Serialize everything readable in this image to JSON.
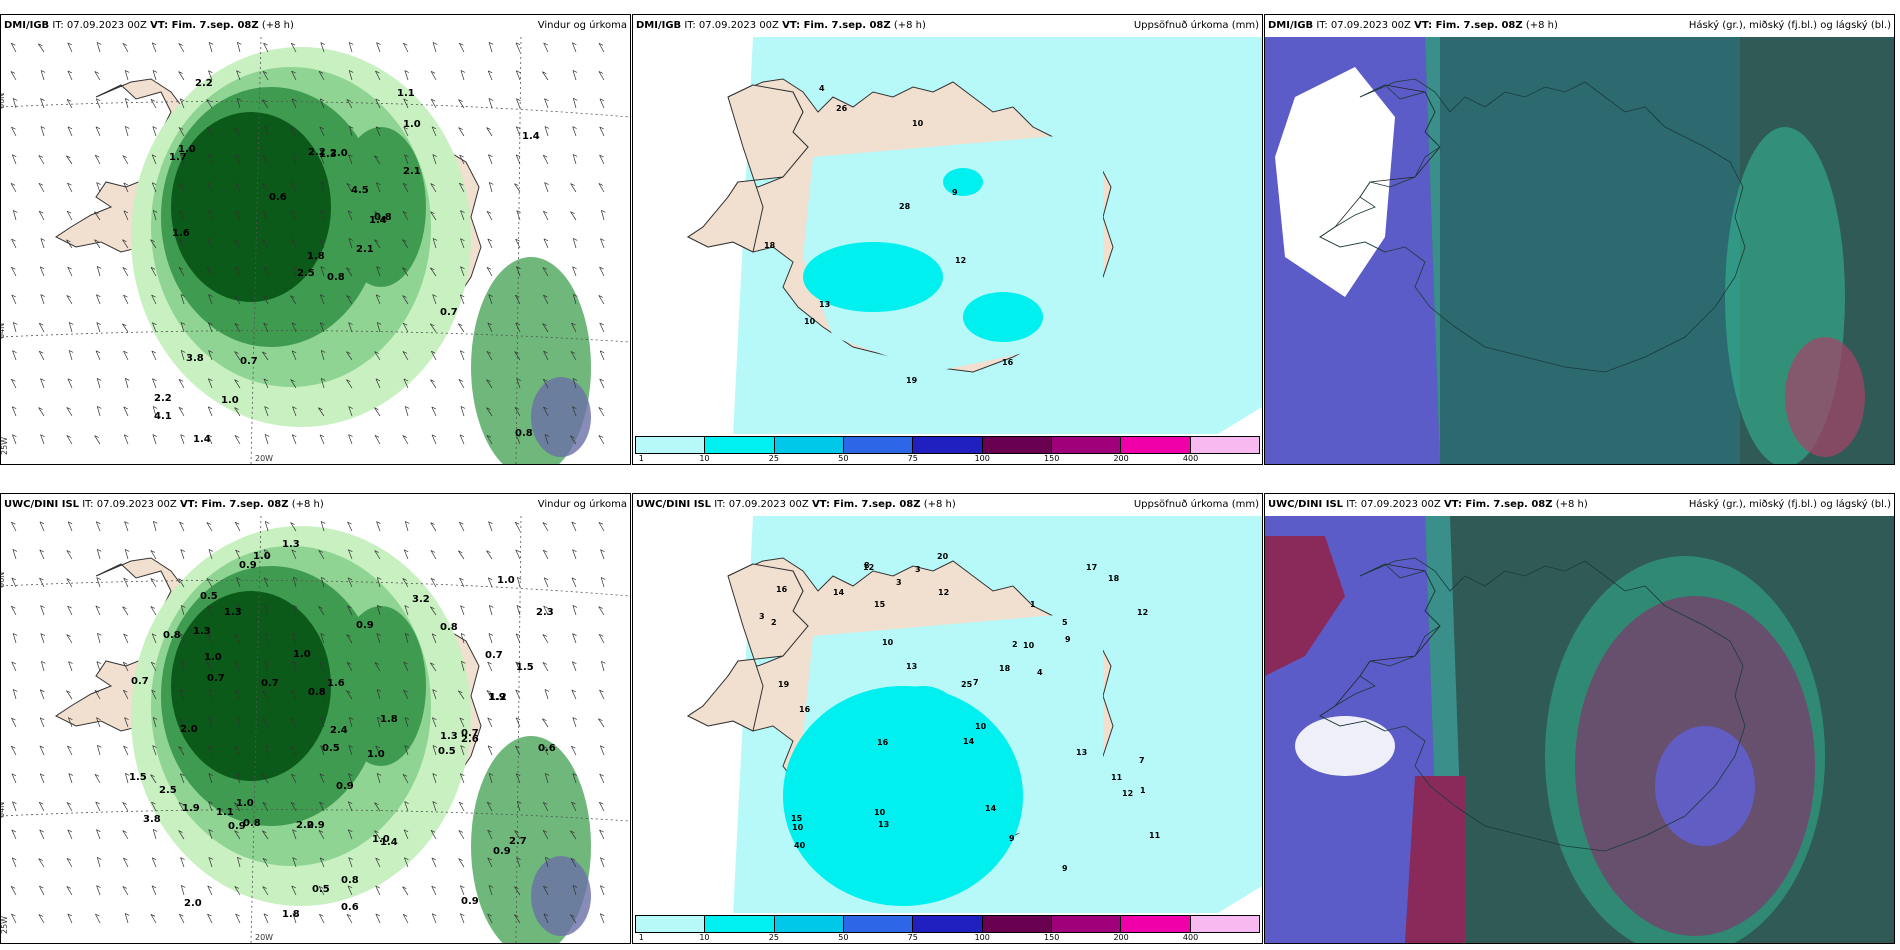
{
  "panels": [
    {
      "model": "DMI/IGB",
      "init": "IT: 07.09.2023 00Z",
      "valid": "VT: Fim. 7.sep. 08Z",
      "lead": "(+8 h)",
      "product": "Vindur og úrkoma",
      "kind": "wind",
      "labels": [
        "0.8",
        "1.7",
        "1.8",
        "2.2",
        "1.4",
        "0.7",
        "1.1",
        "2.0",
        "1.0",
        "2.1",
        "2.2",
        "0.8",
        "1.6",
        "1.4",
        "2.5",
        "2.1",
        "1.4",
        "2.2",
        "4.5",
        "3.8",
        "0.6",
        "4.1",
        "1.0",
        "1.3",
        "0.8",
        "0.7",
        "1.0"
      ],
      "axis": [
        "66N",
        "64N",
        "25W",
        "20W"
      ]
    },
    {
      "model": "DMI/IGB",
      "init": "IT: 07.09.2023 00Z",
      "valid": "VT: Fim. 7.sep. 08Z",
      "lead": "(+8 h)",
      "product": "Uppsöfnuð úrkoma (mm)",
      "kind": "accum",
      "labels": [
        "10",
        "16",
        "12",
        "18",
        "26",
        "4",
        "19",
        "28",
        "13",
        "9",
        "10"
      ],
      "colorbar": {
        "ticks": [
          "1",
          "10",
          "25",
          "50",
          "75",
          "100",
          "150",
          "200",
          "400"
        ],
        "colors": [
          "#b7f8f8",
          "#00efef",
          "#00c8e8",
          "#2e66e8",
          "#2020c0",
          "#6a0050",
          "#a0007a",
          "#f000a8",
          "#f8b8f0"
        ]
      }
    },
    {
      "model": "DMI/IGB",
      "init": "IT: 07.09.2023 00Z",
      "valid": "VT: Fim. 7.sep. 08Z",
      "lead": "(+8 h)",
      "product": "Háský (gr.), miðský (fj.bl.) og lágský (bl.)",
      "kind": "cloud"
    },
    {
      "model": "UWC/DINI ISL",
      "init": "IT: 07.09.2023 00Z",
      "valid": "VT: Fim. 7.sep. 08Z",
      "lead": "(+8 h)",
      "product": "Vindur og úrkoma",
      "kind": "wind",
      "labels": [
        "1.0",
        "0.8",
        "0.8",
        "0.9",
        "0.8",
        "0.9",
        "0.7",
        "1.0",
        "0.9",
        "0.5",
        "1.0",
        "1.3",
        "0.9",
        "0.7",
        "0.9",
        "0.8",
        "1.0",
        "0.5",
        "1.1",
        "0.9",
        "0.6",
        "0.9",
        "1.3",
        "1.8",
        "1.5",
        "2.0",
        "2.3",
        "1.4",
        "1.6",
        "2.0",
        "1.8",
        "1.0",
        "1.3",
        "1.0",
        "2.6",
        "2.2",
        "2.7",
        "0.5",
        "0.7",
        "1.0",
        "0.7",
        "1.2",
        "0.6",
        "1.3",
        "0.8",
        "1.9",
        "0.7",
        "0.5",
        "2.5",
        "3.8",
        "2.4",
        "3.2",
        "1.9",
        "1.5"
      ],
      "axis": [
        "66N",
        "64N",
        "25W",
        "20W"
      ]
    },
    {
      "model": "UWC/DINI ISL",
      "init": "IT: 07.09.2023 00Z",
      "valid": "VT: Fim. 7.sep. 08Z",
      "lead": "(+8 h)",
      "product": "Uppsöfnuð úrkoma (mm)",
      "kind": "accum",
      "labels": [
        "4",
        "2",
        "3",
        "1",
        "7",
        "7",
        "9",
        "10",
        "12",
        "8",
        "10",
        "10",
        "14",
        "11",
        "17",
        "11",
        "9",
        "15",
        "13",
        "12",
        "16",
        "13",
        "40",
        "18",
        "19",
        "25",
        "16",
        "14",
        "20",
        "18",
        "15",
        "12",
        "16",
        "10",
        "13",
        "9",
        "10",
        "12",
        "14",
        "5",
        "3",
        "1",
        "2",
        "3"
      ],
      "colorbar": {
        "ticks": [
          "1",
          "10",
          "25",
          "50",
          "75",
          "100",
          "150",
          "200",
          "400"
        ],
        "colors": [
          "#b7f8f8",
          "#00efef",
          "#00c8e8",
          "#2e66e8",
          "#2020c0",
          "#6a0050",
          "#a0007a",
          "#f000a8",
          "#f8b8f0"
        ]
      }
    },
    {
      "model": "UWC/DINI ISL",
      "init": "IT: 07.09.2023 00Z",
      "valid": "VT: Fim. 7.sep. 08Z",
      "lead": "(+8 h)",
      "product": "Háský (gr.), miðský (fj.bl.) og lágský (bl.)",
      "kind": "cloud"
    }
  ]
}
